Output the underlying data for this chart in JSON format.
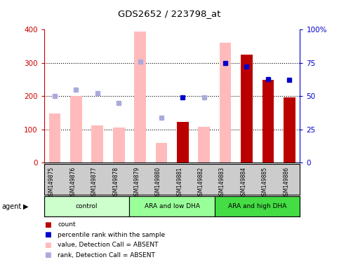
{
  "title": "GDS2652 / 223798_at",
  "samples": [
    "GSM149875",
    "GSM149876",
    "GSM149877",
    "GSM149878",
    "GSM149879",
    "GSM149880",
    "GSM149881",
    "GSM149882",
    "GSM149883",
    "GSM149884",
    "GSM149885",
    "GSM149886"
  ],
  "groups": [
    {
      "label": "control",
      "start": 0,
      "end": 3,
      "color": "#ccffcc"
    },
    {
      "label": "ARA and low DHA",
      "start": 4,
      "end": 7,
      "color": "#99ff99"
    },
    {
      "label": "ARA and high DHA",
      "start": 8,
      "end": 11,
      "color": "#44dd44"
    }
  ],
  "absent_bar_values": [
    148,
    200,
    113,
    105,
    395,
    60,
    null,
    108,
    360,
    null,
    null,
    null
  ],
  "absent_rank_values": [
    50,
    55,
    52,
    45,
    76,
    34,
    null,
    49,
    null,
    null,
    null,
    null
  ],
  "present_bar_values": [
    null,
    null,
    null,
    null,
    null,
    null,
    122,
    null,
    null,
    325,
    250,
    197
  ],
  "present_rank_values": [
    null,
    null,
    null,
    null,
    null,
    null,
    49,
    null,
    75,
    72,
    63,
    62
  ],
  "ylim_left": [
    0,
    400
  ],
  "ylim_right": [
    0,
    100
  ],
  "yticks_left": [
    0,
    100,
    200,
    300,
    400
  ],
  "yticks_right": [
    0,
    25,
    50,
    75,
    100
  ],
  "ytick_labels_right": [
    "0",
    "25",
    "50",
    "75",
    "100%"
  ],
  "bar_width": 0.55,
  "absent_bar_color": "#ffbbbb",
  "present_bar_color": "#bb0000",
  "absent_rank_color": "#aaaadd",
  "present_rank_color": "#0000cc",
  "axis_color_left": "#cc0000",
  "axis_color_right": "#0000cc",
  "bg_color": "#ffffff",
  "tick_area_color": "#cccccc",
  "hgrid_ticks": [
    100,
    200,
    300
  ]
}
